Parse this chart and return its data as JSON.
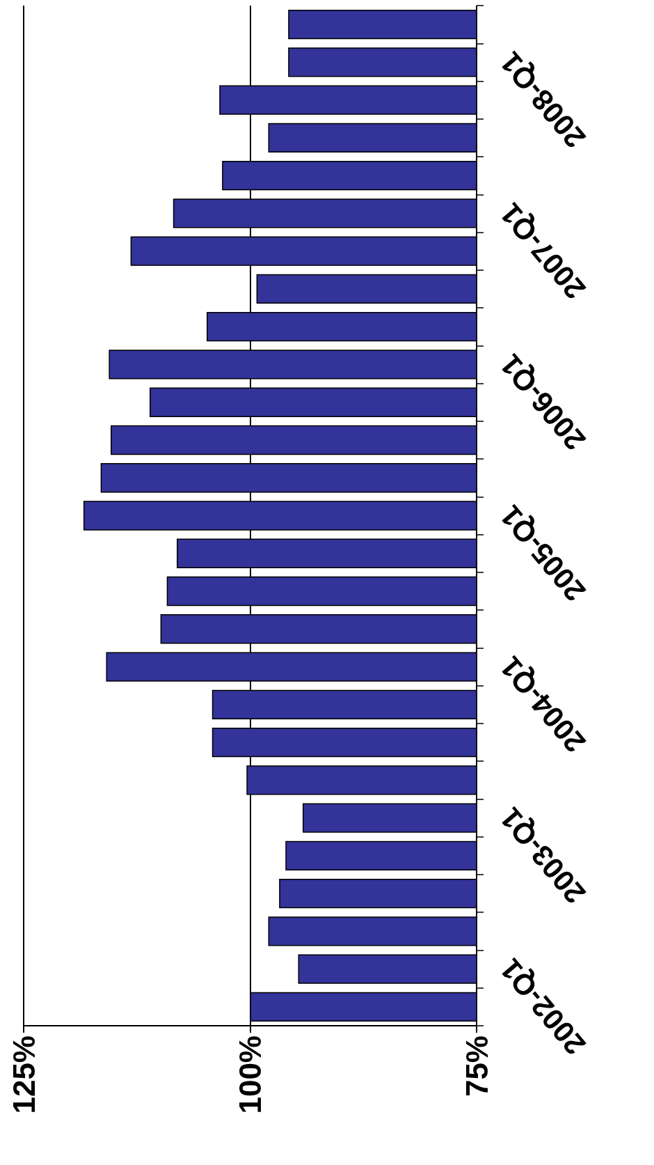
{
  "chart_data": {
    "type": "bar",
    "orientation": "horizontal",
    "categories": [
      null,
      null,
      "2008-Q1",
      null,
      null,
      null,
      "2007-Q1",
      null,
      null,
      null,
      "2006-Q1",
      null,
      null,
      null,
      "2005-Q1",
      null,
      null,
      null,
      "2004-Q1",
      null,
      null,
      null,
      "2003-Q1",
      null,
      null,
      null,
      "2002-Q1"
    ],
    "values": [
      95.8,
      95.8,
      103.4,
      98.0,
      103.1,
      108.5,
      113.2,
      99.3,
      104.8,
      115.6,
      111.1,
      115.4,
      116.5,
      118.4,
      108.1,
      109.2,
      109.9,
      115.9,
      104.2,
      104.2,
      100.4,
      94.2,
      96.1,
      96.8,
      98.0,
      94.7,
      100
    ],
    "color": "#333399",
    "xlim": [
      125,
      75
    ],
    "xticks": [
      {
        "value": 125,
        "label": "125%"
      },
      {
        "value": 100,
        "label": "100%"
      },
      {
        "value": 75,
        "label": "75%"
      }
    ],
    "grid": "x"
  }
}
